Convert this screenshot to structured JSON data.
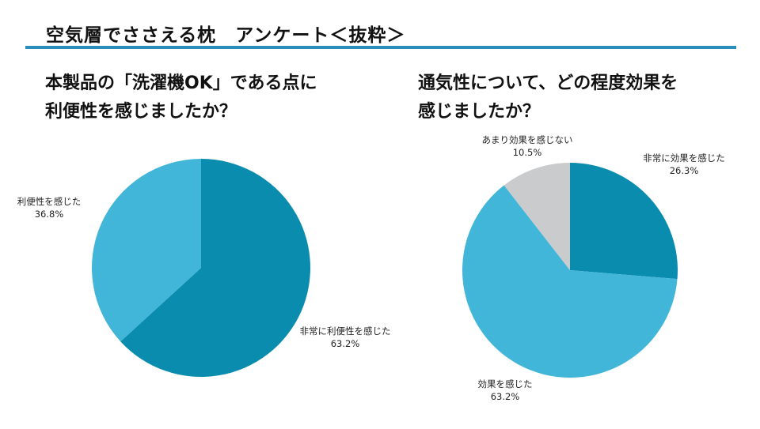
{
  "header": {
    "title": "空気層でささえる枕　アンケート＜抜粋＞"
  },
  "accent_color": "#2b8fbd",
  "questions": [
    {
      "line1": "本製品の「洗濯機OK」である点に",
      "line2": "利便性を感じましたか？"
    },
    {
      "line1": "通気性について、どの程度効果を",
      "line2": "感じましたか？"
    }
  ],
  "chart_data": [
    {
      "type": "pie",
      "title": "本製品の「洗濯機OK」である点に利便性を感じましたか？",
      "slices": [
        {
          "label": "非常に利便性を感じた",
          "value": 63.2,
          "value_text": "63.2%",
          "color": "#0a8caf"
        },
        {
          "label": "利便性を感じた",
          "value": 36.8,
          "value_text": "36.8%",
          "color": "#41b6d8"
        }
      ]
    },
    {
      "type": "pie",
      "title": "通気性について、どの程度効果を感じましたか？",
      "slices": [
        {
          "label": "非常に効果を感じた",
          "value": 26.3,
          "value_text": "26.3%",
          "color": "#0a8caf"
        },
        {
          "label": "効果を感じた",
          "value": 63.2,
          "value_text": "63.2%",
          "color": "#41b6d8"
        },
        {
          "label": "あまり効果を感じない",
          "value": 10.5,
          "value_text": "10.5%",
          "color": "#c9cbcd"
        }
      ]
    }
  ]
}
